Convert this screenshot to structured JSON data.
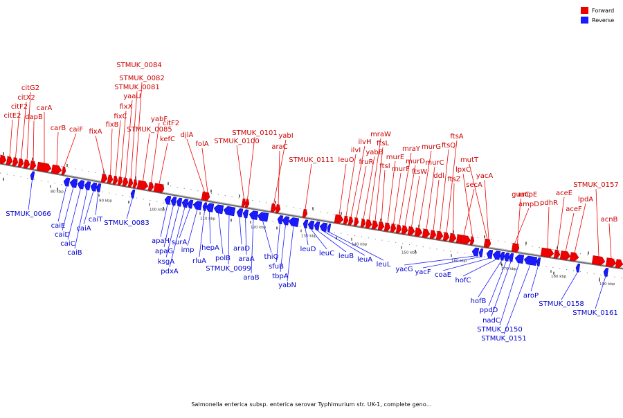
{
  "caption": "Salmonella enterica subsp. enterica serovar Typhimurium str. UK-1, complete geno...",
  "legend": [
    {
      "label": "Forward",
      "color": "#ee0000"
    },
    {
      "label": "Reverse",
      "color": "#1a1aff"
    }
  ],
  "colors": {
    "forward": "#ee0000",
    "reverse": "#1a1aff",
    "backbone": "#6e6e6e"
  },
  "scale_ticks": [
    "80 kbp",
    "90 kbp",
    "100 kbp",
    "110 kbp",
    "120 kbp",
    "130 kbp",
    "140 kbp",
    "150 kbp",
    "160 kbp",
    "170 kbp",
    "180 kbp",
    "190 kbp"
  ],
  "forward_genes": [
    "citE2",
    "citF2",
    "citX2",
    "citG2",
    "dapB",
    "carA",
    "carB",
    "caiF",
    "fixA",
    "fixB",
    "fixC",
    "fixX",
    "yaaU",
    "STMUK_0081",
    "STMUK_0082",
    "STMUK_0084",
    "STMUK_0085",
    "yabF",
    "kefC",
    "folA",
    "djlA",
    "STMUK_0100",
    "STMUK_0101",
    "araC",
    "yabI",
    "STMUK_0111",
    "leuO",
    "ilvI",
    "ilvH",
    "fruR",
    "yabB",
    "mraW",
    "ftsL",
    "ftsI",
    "murE",
    "murF",
    "mraY",
    "murD",
    "ftsW",
    "murG",
    "murC",
    "ddl",
    "ftsQ",
    "ftsA",
    "ftsZ",
    "lpxC",
    "secA",
    "yacA",
    "mutT",
    "guaC",
    "ampD",
    "ampE",
    "pdhR",
    "aceE",
    "aceF",
    "lpdA",
    "STMUK_0157",
    "acnB"
  ],
  "reverse_genes": [
    "STMUK_0066",
    "caiE",
    "caiD",
    "caiC",
    "caiB",
    "caiA",
    "caiT",
    "STMUK_0083",
    "apaH",
    "apaG",
    "ksgA",
    "pdxA",
    "surA",
    "imp",
    "rluA",
    "hepA",
    "polB",
    "STMUK_0099",
    "araD",
    "araA",
    "araB",
    "thiQ",
    "sfuB",
    "tbpA",
    "yabN",
    "leuD",
    "leuC",
    "leuB",
    "leuA",
    "leuL",
    "yacG",
    "yacF",
    "coaE",
    "hofC",
    "hofB",
    "ppdD",
    "nadC",
    "STMUK_0150",
    "STMUK_0151",
    "aroP",
    "STMUK_0158",
    "STMUK_0161"
  ]
}
